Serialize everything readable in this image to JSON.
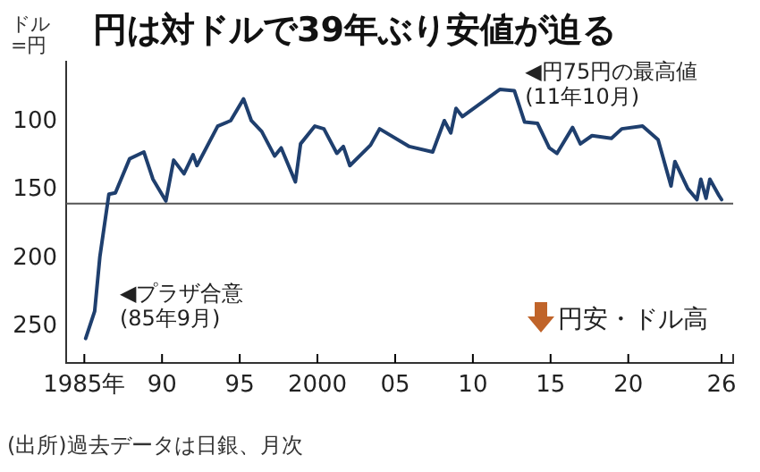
{
  "chart_data": {
    "type": "line",
    "title": "円は対ドルで39年ぶり安値が迫る",
    "ylabel": "ドル\n=円",
    "x": [
      "1985-02",
      "1985-09",
      "1986-01",
      "1986-08",
      "1987-01",
      "1987-12",
      "1988-11",
      "1989-06",
      "1990-04",
      "1990-10",
      "1991-06",
      "1992-01",
      "1992-04",
      "1993-08",
      "1994-06",
      "1995-04",
      "1995-10",
      "1996-06",
      "1997-04",
      "1997-09",
      "1998-08",
      "1998-12",
      "1999-11",
      "2000-06",
      "2001-04",
      "2001-09",
      "2002-02",
      "2003-06",
      "2004-01",
      "2005-12",
      "2007-06",
      "2008-03",
      "2008-08",
      "2008-12",
      "2009-05",
      "2010-03",
      "2011-10",
      "2012-09",
      "2013-05",
      "2014-03",
      "2014-12",
      "2015-06",
      "2016-06",
      "2016-12",
      "2017-09",
      "2018-12",
      "2019-08",
      "2020-12",
      "2021-12",
      "2022-10",
      "2023-01",
      "2023-11",
      "2024-06",
      "2024-09",
      "2025-01",
      "2025-04",
      "2025-11",
      "2026-01"
    ],
    "series": [
      {
        "color": "#1f3f6e",
        "values": [
          260,
          240,
          200,
          154,
          153,
          128,
          123,
          143,
          159,
          129,
          139,
          125,
          133,
          104,
          100,
          84,
          100,
          108,
          126,
          120,
          145,
          117,
          104,
          106,
          124,
          119,
          133,
          118,
          106,
          119,
          123,
          100,
          109,
          91,
          97,
          90,
          77,
          78,
          101,
          102,
          120,
          124,
          105,
          117,
          111,
          113,
          106,
          104,
          114,
          148,
          130,
          150,
          158,
          143,
          157,
          143,
          155,
          158
        ]
      }
    ],
    "xlim": [
      "1983-11",
      "2026-10"
    ],
    "ylim": [
      278,
      56
    ],
    "xticks": [
      {
        "value": "1985",
        "label": "1985年"
      },
      {
        "value": "1990",
        "label": "90"
      },
      {
        "value": "1995",
        "label": "95"
      },
      {
        "value": "2000",
        "label": "2000"
      },
      {
        "value": "2005",
        "label": "05"
      },
      {
        "value": "2010",
        "label": "10"
      },
      {
        "value": "2015",
        "label": "15"
      },
      {
        "value": "2020",
        "label": "20"
      },
      {
        "value": "2026",
        "label": "26"
      }
    ],
    "yticks": [
      100,
      150,
      200,
      250
    ],
    "ref_lines": [
      {
        "axis": "y",
        "value": 161,
        "color": "#555555"
      }
    ],
    "annotations": [
      {
        "text": "◀円75円の最高値\n(11年10月)",
        "x": "2011-10",
        "y": 77
      },
      {
        "text": "◀プラザ合意\n(85年9月)",
        "x": "1985-09",
        "y": 240
      },
      "円安・ドル高",
      "(出所)過去データは日銀、月次"
    ],
    "grid": false
  }
}
